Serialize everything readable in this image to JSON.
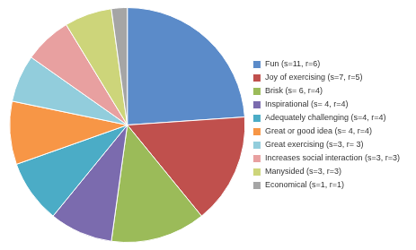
{
  "chart_data": {
    "type": "pie",
    "categories": [
      "Fun (s=11, r=6)",
      "Joy of exercising (s=7, r=5)",
      "Brisk (s= 6, r=4)",
      "Inspirational (s= 4, r=4)",
      "Adequately challenging (s=4, r=4)",
      "Great or good idea (s= 4, r=4)",
      "Great exercising (s=3, r= 3)",
      "Increases social interaction (s=3, r=3)",
      "Manysided (s=3, r=3)",
      "Economical (s=1, r=1)"
    ],
    "values": [
      11,
      7,
      6,
      4,
      4,
      4,
      3,
      3,
      3,
      1
    ],
    "colors": [
      "#5B8BC9",
      "#C0504D",
      "#9BBB59",
      "#7B6BAE",
      "#4BACC6",
      "#F79646",
      "#92CDDC",
      "#E8A0A0",
      "#CDD57A",
      "#A5A5A5"
    ],
    "legend": "right"
  }
}
